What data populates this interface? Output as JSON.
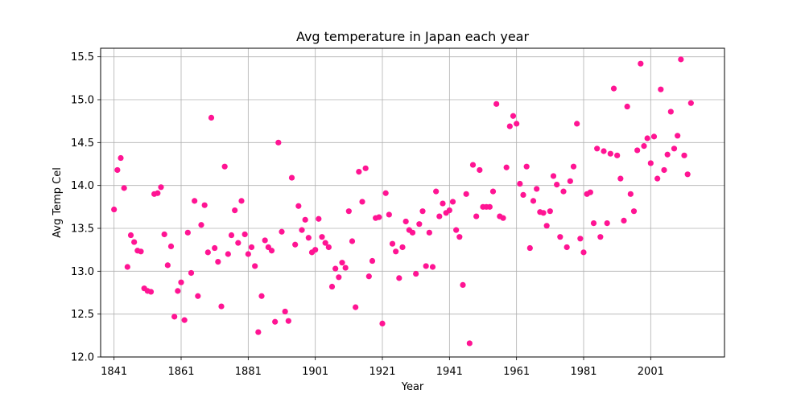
{
  "chart_data": {
    "type": "scatter",
    "title": "Avg temperature in Japan each year",
    "xlabel": "Year",
    "ylabel": "Avg Temp Cel",
    "xlim": [
      1837,
      2023
    ],
    "ylim": [
      12.0,
      15.6
    ],
    "x_ticks": [
      1841,
      1861,
      1881,
      1901,
      1921,
      1941,
      1961,
      1981,
      2001
    ],
    "y_ticks": [
      12.0,
      12.5,
      13.0,
      13.5,
      14.0,
      14.5,
      15.0,
      15.5
    ],
    "y_tick_labels": [
      "12.0",
      "12.5",
      "13.0",
      "13.5",
      "14.0",
      "14.5",
      "15.0",
      "15.5"
    ],
    "grid": true,
    "marker_color": "#ff1493",
    "points": [
      [
        1841,
        13.72
      ],
      [
        1842,
        14.18
      ],
      [
        1843,
        14.32
      ],
      [
        1844,
        13.97
      ],
      [
        1845,
        13.05
      ],
      [
        1846,
        13.42
      ],
      [
        1847,
        13.34
      ],
      [
        1848,
        13.24
      ],
      [
        1849,
        13.23
      ],
      [
        1850,
        12.8
      ],
      [
        1851,
        12.77
      ],
      [
        1852,
        12.76
      ],
      [
        1853,
        13.9
      ],
      [
        1854,
        13.91
      ],
      [
        1855,
        13.98
      ],
      [
        1856,
        13.43
      ],
      [
        1857,
        13.07
      ],
      [
        1858,
        13.29
      ],
      [
        1859,
        12.47
      ],
      [
        1860,
        12.77
      ],
      [
        1861,
        12.87
      ],
      [
        1862,
        12.43
      ],
      [
        1863,
        13.45
      ],
      [
        1864,
        12.98
      ],
      [
        1865,
        13.82
      ],
      [
        1866,
        12.71
      ],
      [
        1867,
        13.54
      ],
      [
        1868,
        13.77
      ],
      [
        1869,
        13.22
      ],
      [
        1870,
        14.79
      ],
      [
        1871,
        13.27
      ],
      [
        1872,
        13.11
      ],
      [
        1873,
        12.59
      ],
      [
        1874,
        14.22
      ],
      [
        1875,
        13.2
      ],
      [
        1876,
        13.42
      ],
      [
        1877,
        13.71
      ],
      [
        1878,
        13.33
      ],
      [
        1879,
        13.82
      ],
      [
        1880,
        13.43
      ],
      [
        1881,
        13.2
      ],
      [
        1882,
        13.28
      ],
      [
        1883,
        13.06
      ],
      [
        1884,
        12.29
      ],
      [
        1885,
        12.71
      ],
      [
        1886,
        13.36
      ],
      [
        1887,
        13.28
      ],
      [
        1888,
        13.24
      ],
      [
        1889,
        12.41
      ],
      [
        1890,
        14.5
      ],
      [
        1891,
        13.46
      ],
      [
        1892,
        12.53
      ],
      [
        1893,
        12.42
      ],
      [
        1894,
        14.09
      ],
      [
        1895,
        13.31
      ],
      [
        1896,
        13.76
      ],
      [
        1897,
        13.48
      ],
      [
        1898,
        13.6
      ],
      [
        1899,
        13.39
      ],
      [
        1900,
        13.22
      ],
      [
        1901,
        13.25
      ],
      [
        1902,
        13.61
      ],
      [
        1903,
        13.4
      ],
      [
        1904,
        13.33
      ],
      [
        1905,
        13.28
      ],
      [
        1906,
        12.82
      ],
      [
        1907,
        13.03
      ],
      [
        1908,
        12.93
      ],
      [
        1909,
        13.1
      ],
      [
        1910,
        13.04
      ],
      [
        1911,
        13.7
      ],
      [
        1912,
        13.35
      ],
      [
        1913,
        12.58
      ],
      [
        1914,
        14.16
      ],
      [
        1915,
        13.81
      ],
      [
        1916,
        14.2
      ],
      [
        1917,
        12.94
      ],
      [
        1918,
        13.12
      ],
      [
        1919,
        13.62
      ],
      [
        1920,
        13.63
      ],
      [
        1921,
        12.39
      ],
      [
        1922,
        13.91
      ],
      [
        1923,
        13.66
      ],
      [
        1924,
        13.32
      ],
      [
        1925,
        13.23
      ],
      [
        1926,
        12.92
      ],
      [
        1927,
        13.28
      ],
      [
        1928,
        13.58
      ],
      [
        1929,
        13.48
      ],
      [
        1930,
        13.45
      ],
      [
        1931,
        12.97
      ],
      [
        1932,
        13.55
      ],
      [
        1933,
        13.7
      ],
      [
        1934,
        13.06
      ],
      [
        1935,
        13.45
      ],
      [
        1936,
        13.05
      ],
      [
        1937,
        13.93
      ],
      [
        1938,
        13.64
      ],
      [
        1939,
        13.79
      ],
      [
        1940,
        13.68
      ],
      [
        1941,
        13.71
      ],
      [
        1942,
        13.81
      ],
      [
        1943,
        13.48
      ],
      [
        1944,
        13.4
      ],
      [
        1945,
        12.84
      ],
      [
        1946,
        13.9
      ],
      [
        1947,
        12.16
      ],
      [
        1948,
        14.24
      ],
      [
        1949,
        13.64
      ],
      [
        1950,
        14.18
      ],
      [
        1951,
        13.75
      ],
      [
        1952,
        13.75
      ],
      [
        1953,
        13.75
      ],
      [
        1954,
        13.93
      ],
      [
        1955,
        14.95
      ],
      [
        1956,
        13.64
      ],
      [
        1957,
        13.62
      ],
      [
        1958,
        14.21
      ],
      [
        1959,
        14.69
      ],
      [
        1960,
        14.81
      ],
      [
        1961,
        14.72
      ],
      [
        1962,
        14.02
      ],
      [
        1963,
        13.89
      ],
      [
        1964,
        14.22
      ],
      [
        1965,
        13.27
      ],
      [
        1966,
        13.82
      ],
      [
        1967,
        13.96
      ],
      [
        1968,
        13.69
      ],
      [
        1969,
        13.68
      ],
      [
        1970,
        13.53
      ],
      [
        1971,
        13.7
      ],
      [
        1972,
        14.11
      ],
      [
        1973,
        14.01
      ],
      [
        1974,
        13.4
      ],
      [
        1975,
        13.93
      ],
      [
        1976,
        13.28
      ],
      [
        1977,
        14.05
      ],
      [
        1978,
        14.22
      ],
      [
        1979,
        14.72
      ],
      [
        1980,
        13.38
      ],
      [
        1981,
        13.22
      ],
      [
        1982,
        13.9
      ],
      [
        1983,
        13.92
      ],
      [
        1984,
        13.56
      ],
      [
        1985,
        14.43
      ],
      [
        1986,
        13.4
      ],
      [
        1987,
        14.4
      ],
      [
        1988,
        13.56
      ],
      [
        1989,
        14.37
      ],
      [
        1990,
        15.13
      ],
      [
        1991,
        14.35
      ],
      [
        1992,
        14.08
      ],
      [
        1993,
        13.59
      ],
      [
        1994,
        14.92
      ],
      [
        1995,
        13.9
      ],
      [
        1996,
        13.7
      ],
      [
        1997,
        14.41
      ],
      [
        1998,
        15.42
      ],
      [
        1999,
        14.46
      ],
      [
        2000,
        14.55
      ],
      [
        2001,
        14.26
      ],
      [
        2002,
        14.57
      ],
      [
        2003,
        14.08
      ],
      [
        2004,
        15.12
      ],
      [
        2005,
        14.18
      ],
      [
        2006,
        14.36
      ],
      [
        2007,
        14.86
      ],
      [
        2008,
        14.43
      ],
      [
        2009,
        14.58
      ],
      [
        2010,
        15.47
      ],
      [
        2011,
        14.35
      ],
      [
        2012,
        14.13
      ],
      [
        2013,
        14.96
      ]
    ]
  }
}
